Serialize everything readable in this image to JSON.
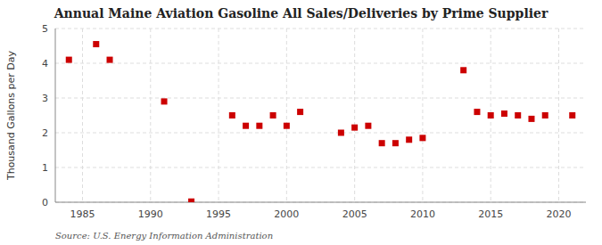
{
  "chart_data": {
    "type": "scatter",
    "title": "Annual Maine Aviation Gasoline All Sales/Deliveries by Prime Supplier",
    "ylabel": "Thousand Gallons per Day",
    "annotation": "Source: U.S. Energy Information Administration",
    "x": [
      1984,
      1986,
      1987,
      1991,
      1993,
      1996,
      1997,
      1998,
      1999,
      2000,
      2001,
      2004,
      2005,
      2006,
      2007,
      2008,
      2009,
      2010,
      2013,
      2014,
      2015,
      2016,
      2017,
      2018,
      2019,
      2021
    ],
    "values": [
      4.1,
      4.55,
      4.1,
      2.9,
      0.02,
      2.5,
      2.2,
      2.2,
      2.5,
      2.2,
      2.6,
      2.0,
      2.15,
      2.2,
      1.7,
      1.7,
      1.8,
      1.85,
      3.8,
      2.6,
      2.5,
      2.55,
      2.5,
      2.4,
      2.5,
      2.5
    ],
    "color": "#cc0000",
    "marker": "square",
    "xlim": [
      1983,
      2022
    ],
    "ylim": [
      0,
      5
    ],
    "xticks": [
      1985,
      1990,
      1995,
      2000,
      2005,
      2010,
      2015,
      2020
    ],
    "yticks": [
      0,
      1,
      2,
      3,
      4,
      5
    ],
    "grid": true
  }
}
